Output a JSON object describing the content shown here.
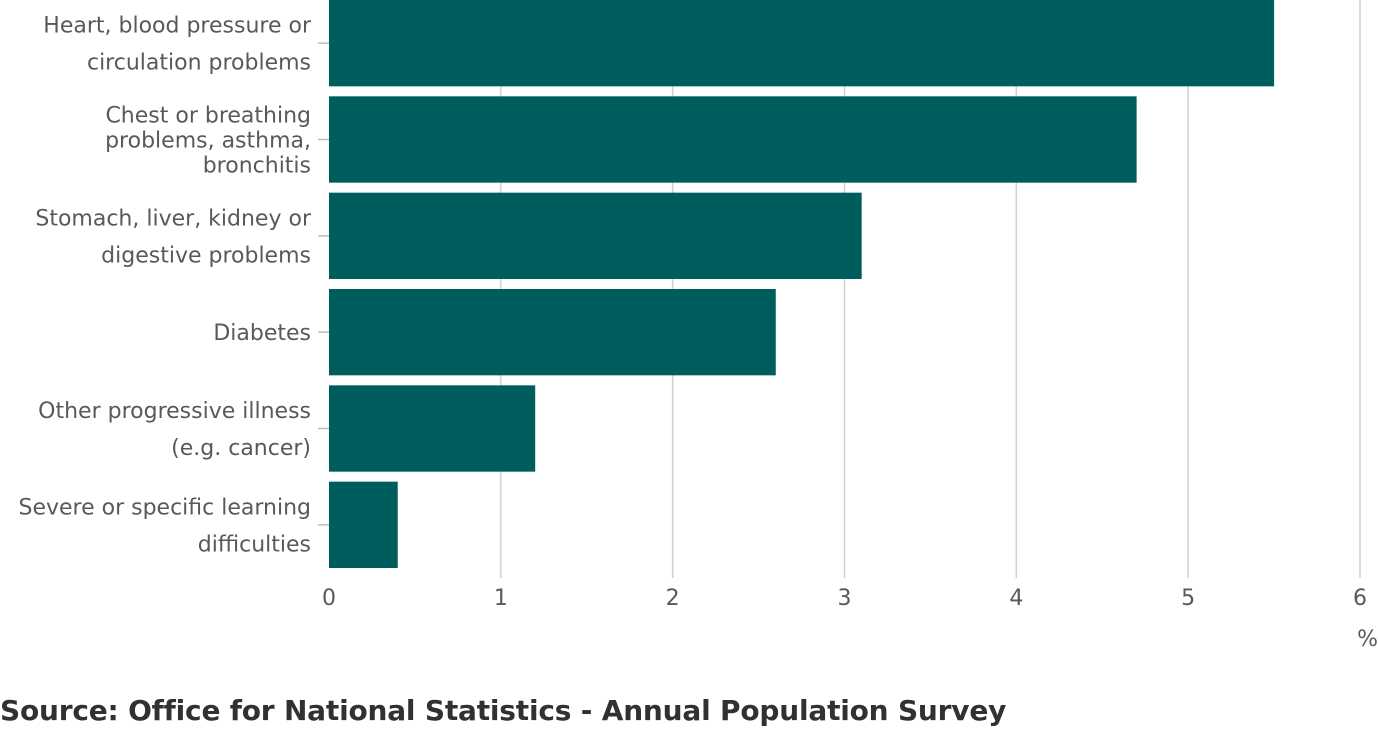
{
  "chart_data": {
    "type": "bar",
    "orientation": "horizontal",
    "categories": [
      [
        "Heart, blood pressure or",
        "circulation problems"
      ],
      [
        "Chest or breathing",
        "problems, asthma,",
        "bronchitis"
      ],
      [
        "Stomach, liver, kidney or",
        "digestive problems"
      ],
      [
        "Diabetes"
      ],
      [
        "Other progressive illness",
        "(e.g. cancer)"
      ],
      [
        "Severe or specific learning",
        "difficulties"
      ]
    ],
    "values": [
      5.5,
      4.7,
      3.1,
      2.6,
      1.2,
      0.4
    ],
    "xlim": [
      0,
      6
    ],
    "xticks": [
      "0",
      "1",
      "2",
      "3",
      "4",
      "5",
      "6"
    ],
    "xlabel": "%",
    "grid": true,
    "bar_color": "#005d5d",
    "grid_color": "#d0d0d0"
  },
  "source": "Source: Office for National Statistics - Annual Population Survey"
}
